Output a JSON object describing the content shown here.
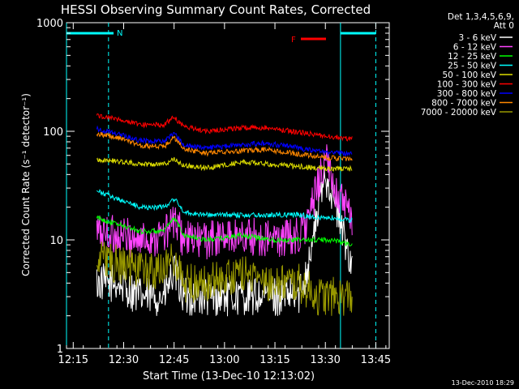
{
  "chart_data": {
    "type": "line",
    "title": "HESSI Observing Summary Count Rates, Corrected",
    "xlabel": "Start Time (13-Dec-10 12:13:02)",
    "ylabel": "Corrected Count Rate (s⁻¹ detector⁻¹)",
    "yscale": "log",
    "ylim": [
      1,
      1000
    ],
    "xlim_minutes": [
      0,
      96
    ],
    "x_ticks": [
      "12:15",
      "12:30",
      "12:45",
      "13:00",
      "13:15",
      "13:30",
      "13:45"
    ],
    "y_ticks": [
      "1",
      "10",
      "100",
      "1000"
    ],
    "grid": false,
    "legend_position": "top-right",
    "legend_header": [
      "Det 1,3,4,5,6,9,",
      "Att 0"
    ],
    "series": [
      {
        "name": "3 - 6 keV",
        "color": "#ffffff",
        "x": [
          "12:22",
          "12:28",
          "12:35",
          "12:42",
          "12:45",
          "12:48",
          "12:55",
          "13:05",
          "13:15",
          "13:22",
          "13:25",
          "13:28",
          "13:30",
          "13:32",
          "13:35",
          "13:38"
        ],
        "y": [
          4,
          4,
          3,
          3,
          5,
          3,
          3,
          3,
          3,
          3,
          6,
          20,
          40,
          28,
          12,
          6
        ]
      },
      {
        "name": "6 - 12 keV",
        "color": "#ff44ff",
        "x": [
          "12:22",
          "12:28",
          "12:35",
          "12:42",
          "12:45",
          "12:48",
          "12:55",
          "13:05",
          "13:15",
          "13:22",
          "13:25",
          "13:28",
          "13:30",
          "13:32",
          "13:35",
          "13:38"
        ],
        "y": [
          12,
          11,
          10,
          11,
          15,
          10,
          10,
          11,
          10,
          11,
          15,
          35,
          55,
          35,
          22,
          15
        ]
      },
      {
        "name": "12 - 25 keV",
        "color": "#00ff00",
        "x": [
          "12:22",
          "12:28",
          "12:35",
          "12:42",
          "12:45",
          "12:48",
          "12:55",
          "13:05",
          "13:15",
          "13:22",
          "13:28",
          "13:32",
          "13:38"
        ],
        "y": [
          16,
          14,
          12,
          12,
          16,
          11,
          10,
          11,
          10,
          10,
          10,
          10,
          9
        ]
      },
      {
        "name": "25 - 50 keV",
        "color": "#00ffff",
        "x": [
          "12:22",
          "12:28",
          "12:35",
          "12:42",
          "12:45",
          "12:48",
          "12:55",
          "13:05",
          "13:15",
          "13:22",
          "13:28",
          "13:32",
          "13:38"
        ],
        "y": [
          28,
          24,
          20,
          20,
          24,
          18,
          17,
          17,
          17,
          17,
          16,
          16,
          15
        ]
      },
      {
        "name": "50 - 100 keV",
        "color": "#dddd00",
        "x": [
          "12:22",
          "12:28",
          "12:35",
          "12:42",
          "12:45",
          "12:48",
          "12:55",
          "13:05",
          "13:12",
          "13:20",
          "13:28",
          "13:38"
        ],
        "y": [
          55,
          53,
          50,
          50,
          55,
          48,
          46,
          52,
          50,
          48,
          46,
          45
        ]
      },
      {
        "name": "100 - 300 keV",
        "color": "#ff0000",
        "x": [
          "12:22",
          "12:28",
          "12:35",
          "12:42",
          "12:45",
          "12:48",
          "12:55",
          "13:05",
          "13:12",
          "13:20",
          "13:28",
          "13:38"
        ],
        "y": [
          140,
          130,
          115,
          115,
          135,
          110,
          100,
          108,
          108,
          100,
          92,
          85
        ]
      },
      {
        "name": "300 - 800 keV",
        "color": "#0000ff",
        "x": [
          "12:22",
          "12:28",
          "12:35",
          "12:42",
          "12:45",
          "12:48",
          "12:55",
          "13:05",
          "13:12",
          "13:20",
          "13:28",
          "13:38"
        ],
        "y": [
          105,
          95,
          82,
          80,
          95,
          75,
          70,
          75,
          78,
          72,
          65,
          62
        ]
      },
      {
        "name": "800 - 7000 keV",
        "color": "#ff8800",
        "x": [
          "12:22",
          "12:28",
          "12:35",
          "12:42",
          "12:45",
          "12:48",
          "12:55",
          "13:05",
          "13:12",
          "13:20",
          "13:28",
          "13:38"
        ],
        "y": [
          95,
          88,
          74,
          72,
          88,
          68,
          63,
          66,
          68,
          63,
          58,
          55
        ]
      },
      {
        "name": "7000 - 20000 keV",
        "color": "#999900",
        "x": [
          "12:22",
          "12:28",
          "12:35",
          "12:42",
          "12:45",
          "12:48",
          "12:55",
          "13:05",
          "13:15",
          "13:22",
          "13:28",
          "13:32",
          "13:38"
        ],
        "y": [
          7,
          6,
          5,
          5,
          7,
          4,
          4,
          5,
          4,
          4,
          3,
          3,
          3
        ]
      }
    ],
    "flag_labels": [
      {
        "text": "N",
        "color": "#00ffff"
      },
      {
        "text": "F",
        "color": "#ff0000"
      }
    ],
    "footer_date": "13-Dec-2010 18:29"
  }
}
